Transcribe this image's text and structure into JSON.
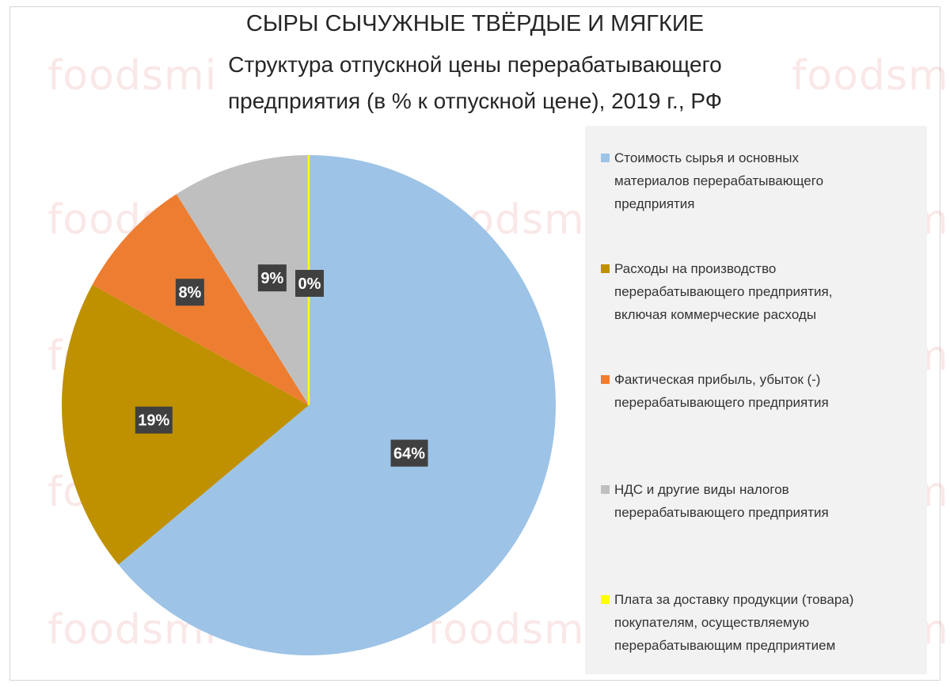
{
  "watermark": "foodsmi",
  "chart_data": {
    "type": "pie",
    "title": "СЫРЫ СЫЧУЖНЫЕ ТВЁРДЫЕ И МЯГКИЕ",
    "subtitle_line1": "Структура отпускной цены перерабатывающего",
    "subtitle_line2": "предприятия (в % к отпускной цене), 2019 г., РФ",
    "legend_position": "right",
    "slices": [
      {
        "label": "Стоимость сырья и основных\nматериалов перерабатывающего\nпредприятия",
        "value": 64,
        "data_label": "64%",
        "color": "#9DC3E6"
      },
      {
        "label": "Расходы на производство\nперерабатывающего предприятия,\nвключая коммерческие расходы",
        "value": 19,
        "data_label": "19%",
        "color": "#BF9000"
      },
      {
        "label": "Фактическая прибыль, убыток (-)\nперерабатывающего предприятия",
        "value": 8,
        "data_label": "8%",
        "color": "#ED7D31"
      },
      {
        "label": "НДС и другие виды налогов\nперерабатывающего предприятия",
        "value": 9,
        "data_label": "9%",
        "color": "#BFBFBF"
      },
      {
        "label": "Плата за доставку продукции (товара)\nпокупателям, осуществляемую\nперерабатывающим предприятием",
        "value": 0,
        "data_label": "0%",
        "color": "#FFFF00"
      }
    ]
  }
}
